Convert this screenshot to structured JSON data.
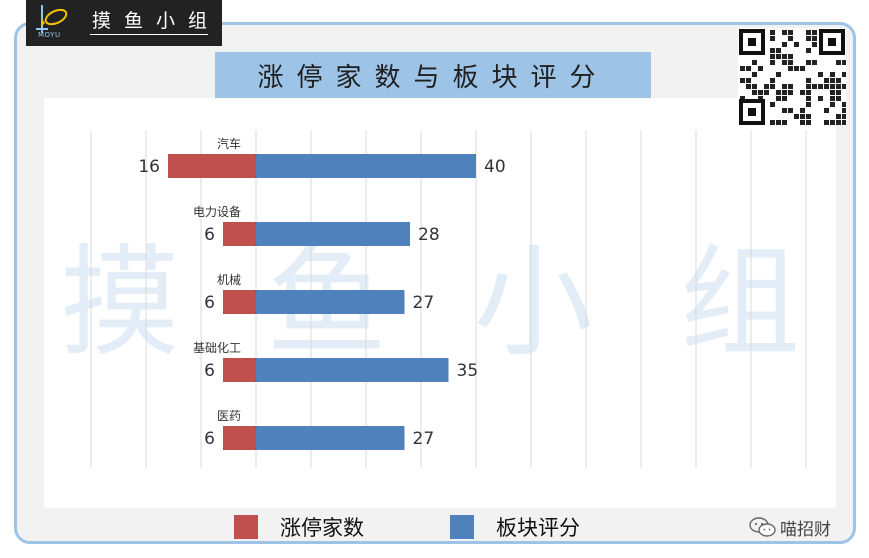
{
  "branding": {
    "logo_name": "摸鱼小组",
    "logo_sub": "MOYU",
    "watermark": [
      "摸",
      "鱼",
      "小",
      "组"
    ],
    "credit": "喵招财",
    "qr_icon": "qr-code-icon",
    "credit_icon": "wechat-icon"
  },
  "colors": {
    "limit_up": "#c0504d",
    "sector_score": "#4f81bd",
    "frame_border": "#9dc3e6",
    "title_bg": "#9dc3e6"
  },
  "chart_data": {
    "type": "bar",
    "orientation": "horizontal",
    "title": "涨停家数与板块评分",
    "categories": [
      "汽车",
      "电力设备",
      "机械",
      "基础化工",
      "医药"
    ],
    "series": [
      {
        "name": "涨停家数",
        "values": [
          16,
          6,
          6,
          6,
          6
        ],
        "direction": "left",
        "color": "#c0504d"
      },
      {
        "name": "板块评分",
        "values": [
          40,
          28,
          27,
          35,
          27
        ],
        "direction": "right",
        "color": "#4f81bd"
      }
    ],
    "data_labels": true,
    "grid": true,
    "legend": "bottom"
  }
}
